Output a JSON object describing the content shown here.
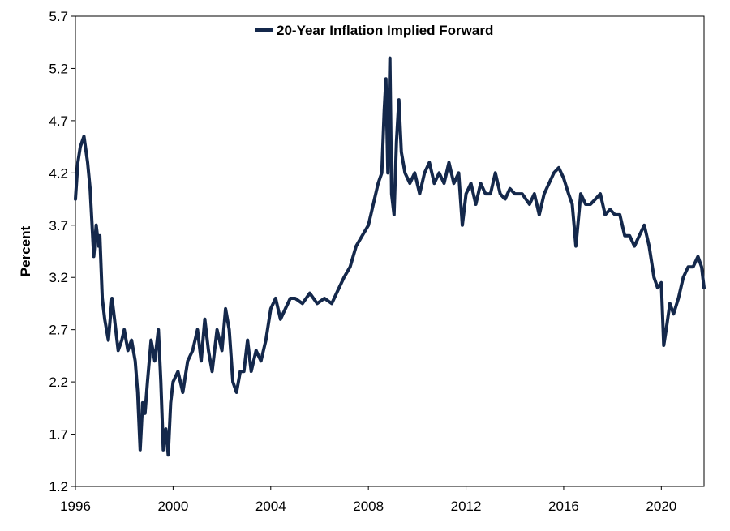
{
  "chart_data": {
    "type": "line",
    "title": "",
    "xlabel": "",
    "ylabel": "Percent",
    "xlim": [
      1996,
      2021.75
    ],
    "ylim": [
      1.2,
      5.7
    ],
    "x_ticks": [
      "1996",
      "2000",
      "2004",
      "2008",
      "2012",
      "2016",
      "2020"
    ],
    "y_ticks": [
      "1.2",
      "1.7",
      "2.2",
      "2.7",
      "3.2",
      "3.7",
      "4.2",
      "4.7",
      "5.2",
      "5.7"
    ],
    "grid": false,
    "legend_position": "top-center",
    "series": [
      {
        "name": "20-Year Inflation Implied Forward",
        "color": "#14284b",
        "x": [
          1996.0,
          1996.1,
          1996.2,
          1996.35,
          1996.5,
          1996.6,
          1996.75,
          1996.85,
          1996.95,
          1997.0,
          1997.1,
          1997.2,
          1997.35,
          1997.5,
          1997.6,
          1997.75,
          1997.9,
          1998.0,
          1998.15,
          1998.3,
          1998.45,
          1998.55,
          1998.65,
          1998.75,
          1998.85,
          1998.95,
          1999.1,
          1999.25,
          1999.4,
          1999.5,
          1999.6,
          1999.7,
          1999.8,
          1999.9,
          2000.0,
          2000.2,
          2000.4,
          2000.6,
          2000.8,
          2001.0,
          2001.15,
          2001.3,
          2001.45,
          2001.6,
          2001.8,
          2002.0,
          2002.15,
          2002.3,
          2002.45,
          2002.6,
          2002.75,
          2002.9,
          2003.05,
          2003.2,
          2003.4,
          2003.6,
          2003.8,
          2004.0,
          2004.2,
          2004.4,
          2004.6,
          2004.8,
          2005.0,
          2005.3,
          2005.6,
          2005.9,
          2006.2,
          2006.5,
          2006.8,
          2007.0,
          2007.25,
          2007.5,
          2007.75,
          2008.0,
          2008.2,
          2008.4,
          2008.55,
          2008.65,
          2008.72,
          2008.8,
          2008.88,
          2008.95,
          2009.05,
          2009.15,
          2009.25,
          2009.35,
          2009.5,
          2009.7,
          2009.9,
          2010.1,
          2010.3,
          2010.5,
          2010.7,
          2010.9,
          2011.1,
          2011.3,
          2011.5,
          2011.7,
          2011.85,
          2012.0,
          2012.2,
          2012.4,
          2012.6,
          2012.8,
          2013.0,
          2013.2,
          2013.4,
          2013.6,
          2013.8,
          2014.0,
          2014.3,
          2014.6,
          2014.8,
          2015.0,
          2015.2,
          2015.4,
          2015.6,
          2015.8,
          2016.0,
          2016.2,
          2016.35,
          2016.5,
          2016.7,
          2016.9,
          2017.1,
          2017.3,
          2017.5,
          2017.7,
          2017.9,
          2018.1,
          2018.3,
          2018.5,
          2018.7,
          2018.9,
          2019.1,
          2019.3,
          2019.5,
          2019.7,
          2019.85,
          2020.0,
          2020.1,
          2020.2,
          2020.35,
          2020.5,
          2020.7,
          2020.9,
          2021.1,
          2021.3,
          2021.5,
          2021.65,
          2021.75
        ],
        "values": [
          3.95,
          4.3,
          4.45,
          4.55,
          4.3,
          4.05,
          3.4,
          3.7,
          3.5,
          3.6,
          3.0,
          2.8,
          2.6,
          3.0,
          2.8,
          2.5,
          2.6,
          2.7,
          2.5,
          2.6,
          2.4,
          2.1,
          1.55,
          2.0,
          1.9,
          2.2,
          2.6,
          2.4,
          2.7,
          2.2,
          1.55,
          1.75,
          1.5,
          2.0,
          2.2,
          2.3,
          2.1,
          2.4,
          2.5,
          2.7,
          2.4,
          2.8,
          2.5,
          2.3,
          2.7,
          2.5,
          2.9,
          2.7,
          2.2,
          2.1,
          2.3,
          2.3,
          2.6,
          2.3,
          2.5,
          2.4,
          2.6,
          2.9,
          3.0,
          2.8,
          2.9,
          3.0,
          3.0,
          2.95,
          3.05,
          2.95,
          3.0,
          2.95,
          3.1,
          3.2,
          3.3,
          3.5,
          3.6,
          3.7,
          3.9,
          4.1,
          4.2,
          4.8,
          5.1,
          4.2,
          5.3,
          4.0,
          3.8,
          4.5,
          4.9,
          4.4,
          4.2,
          4.1,
          4.2,
          4.0,
          4.2,
          4.3,
          4.1,
          4.2,
          4.1,
          4.3,
          4.1,
          4.2,
          3.7,
          4.0,
          4.1,
          3.9,
          4.1,
          4.0,
          4.0,
          4.2,
          4.0,
          3.95,
          4.05,
          4.0,
          4.0,
          3.9,
          4.0,
          3.8,
          4.0,
          4.1,
          4.2,
          4.25,
          4.15,
          4.0,
          3.9,
          3.5,
          4.0,
          3.9,
          3.9,
          3.95,
          4.0,
          3.8,
          3.85,
          3.8,
          3.8,
          3.6,
          3.6,
          3.5,
          3.6,
          3.7,
          3.5,
          3.2,
          3.1,
          3.15,
          2.55,
          2.7,
          2.95,
          2.85,
          3.0,
          3.2,
          3.3,
          3.3,
          3.4,
          3.3,
          3.1
        ]
      }
    ]
  }
}
